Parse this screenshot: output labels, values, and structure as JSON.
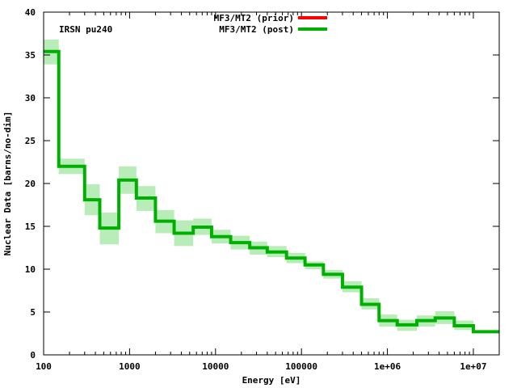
{
  "chart_data": {
    "type": "line",
    "subtype": "step-with-uncertainty-band",
    "xlabel": "Energy [eV]",
    "ylabel": "Nuclear Data [barns/no-dim]",
    "annotation": "IRSN pu240",
    "xscale": "log",
    "xlim": [
      100,
      20000000
    ],
    "ylim": [
      0,
      40
    ],
    "grid": false,
    "legend_position": "top-center",
    "x_ticks": [
      {
        "value": 100,
        "label": "100"
      },
      {
        "value": 1000,
        "label": "1000"
      },
      {
        "value": 10000,
        "label": "10000"
      },
      {
        "value": 100000,
        "label": "100000"
      },
      {
        "value": 1000000,
        "label": "1e+06"
      },
      {
        "value": 10000000,
        "label": "1e+07"
      }
    ],
    "y_ticks": [
      {
        "value": 0,
        "label": "0"
      },
      {
        "value": 5,
        "label": "5"
      },
      {
        "value": 10,
        "label": "10"
      },
      {
        "value": 15,
        "label": "15"
      },
      {
        "value": 20,
        "label": "20"
      },
      {
        "value": 25,
        "label": "25"
      },
      {
        "value": 30,
        "label": "30"
      },
      {
        "value": 35,
        "label": "35"
      },
      {
        "value": 40,
        "label": "40"
      }
    ],
    "colors": {
      "prior": "#ff0000",
      "post": "#00b000",
      "band": "#b8ecb8"
    },
    "series": [
      {
        "name": "MF3/MT2 (prior)",
        "legend_key": "prior",
        "bins": []
      },
      {
        "name": "MF3/MT2 (post)",
        "legend_key": "post",
        "bins": [
          {
            "x0": 100,
            "x1": 150,
            "y": 35.4,
            "lo": 33.9,
            "hi": 36.8
          },
          {
            "x0": 150,
            "x1": 300,
            "y": 22.0,
            "lo": 21.1,
            "hi": 22.9
          },
          {
            "x0": 300,
            "x1": 450,
            "y": 18.1,
            "lo": 16.3,
            "hi": 19.9
          },
          {
            "x0": 450,
            "x1": 750,
            "y": 14.8,
            "lo": 12.9,
            "hi": 16.6
          },
          {
            "x0": 750,
            "x1": 1200,
            "y": 20.4,
            "lo": 18.8,
            "hi": 22.0
          },
          {
            "x0": 1200,
            "x1": 2000,
            "y": 18.3,
            "lo": 16.8,
            "hi": 19.7
          },
          {
            "x0": 2000,
            "x1": 3300,
            "y": 15.6,
            "lo": 14.2,
            "hi": 16.9
          },
          {
            "x0": 3300,
            "x1": 5500,
            "y": 14.2,
            "lo": 12.7,
            "hi": 15.7
          },
          {
            "x0": 5500,
            "x1": 9000,
            "y": 14.9,
            "lo": 14.0,
            "hi": 15.9
          },
          {
            "x0": 9000,
            "x1": 15000,
            "y": 13.8,
            "lo": 13.0,
            "hi": 14.6
          },
          {
            "x0": 15000,
            "x1": 25000,
            "y": 13.1,
            "lo": 12.3,
            "hi": 13.9
          },
          {
            "x0": 25000,
            "x1": 40000,
            "y": 12.5,
            "lo": 11.7,
            "hi": 13.2
          },
          {
            "x0": 40000,
            "x1": 67000,
            "y": 12.0,
            "lo": 11.4,
            "hi": 12.7
          },
          {
            "x0": 67000,
            "x1": 110000,
            "y": 11.3,
            "lo": 10.7,
            "hi": 11.9
          },
          {
            "x0": 110000,
            "x1": 180000,
            "y": 10.5,
            "lo": 10.0,
            "hi": 10.9
          },
          {
            "x0": 180000,
            "x1": 300000,
            "y": 9.4,
            "lo": 8.9,
            "hi": 9.9
          },
          {
            "x0": 300000,
            "x1": 500000,
            "y": 7.9,
            "lo": 7.3,
            "hi": 8.6
          },
          {
            "x0": 500000,
            "x1": 800000,
            "y": 5.9,
            "lo": 5.3,
            "hi": 6.6
          },
          {
            "x0": 800000,
            "x1": 1300000,
            "y": 4.0,
            "lo": 3.3,
            "hi": 4.7
          },
          {
            "x0": 1300000,
            "x1": 2200000,
            "y": 3.5,
            "lo": 2.8,
            "hi": 4.1
          },
          {
            "x0": 2200000,
            "x1": 3600000,
            "y": 4.0,
            "lo": 3.3,
            "hi": 4.6
          },
          {
            "x0": 3600000,
            "x1": 6000000,
            "y": 4.3,
            "lo": 3.6,
            "hi": 5.1
          },
          {
            "x0": 6000000,
            "x1": 10000000,
            "y": 3.4,
            "lo": 2.9,
            "hi": 4.0
          },
          {
            "x0": 10000000,
            "x1": 20000000,
            "y": 2.7,
            "lo": 2.6,
            "hi": 2.8
          }
        ]
      }
    ]
  }
}
